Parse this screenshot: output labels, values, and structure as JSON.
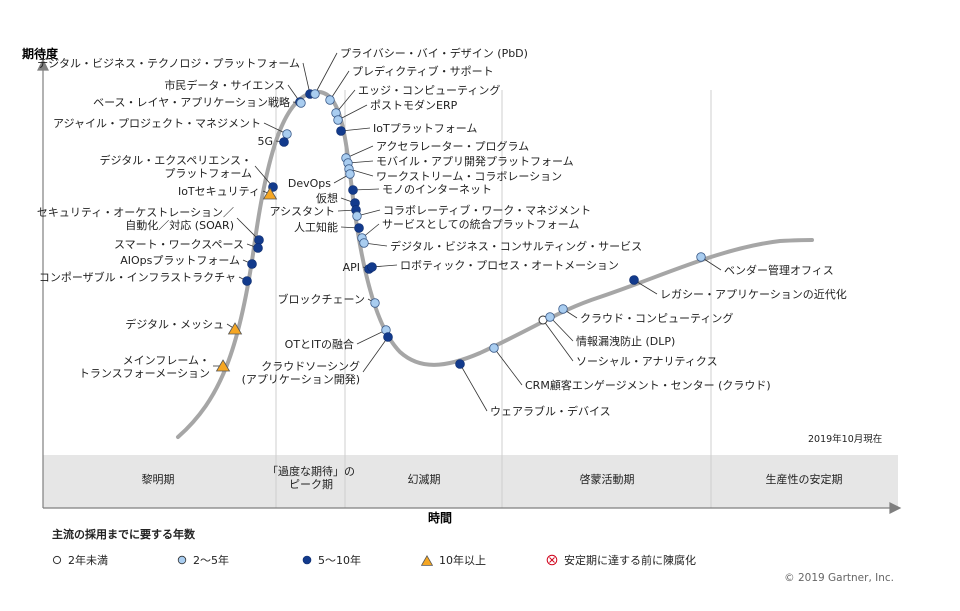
{
  "chart_data": {
    "type": "scatter",
    "ylabel": "期待度",
    "xlabel": "時間",
    "date_note": "2019年10月現在",
    "phases": [
      "黎明期",
      "「過度な期待」の\nピーク期",
      "幻滅期",
      "啓蒙活動期",
      "生産性の安定期"
    ],
    "legend_title": "主流の採用までに要する年数",
    "legend": [
      {
        "key": "lt2",
        "label": "2年未満"
      },
      {
        "key": "2to5",
        "label": "2～5年"
      },
      {
        "key": "5to10",
        "label": "5～10年"
      },
      {
        "key": "gt10",
        "label": "10年以上"
      },
      {
        "key": "obsolete",
        "label": "安定期に達する前に陳腐化"
      }
    ],
    "points": [
      {
        "label": "デジタル・ビジネス・テクノロジ・プラットフォーム",
        "cat": "5to10"
      },
      {
        "label": "市民データ・サイエンス",
        "cat": "5to10"
      },
      {
        "label": "ベース・レイヤ・アプリケーション戦略",
        "cat": "2to5"
      },
      {
        "label": "アジャイル・プロジェクト・マネジメント",
        "cat": "2to5"
      },
      {
        "label": "5G",
        "cat": "5to10"
      },
      {
        "label": "デジタル・エクスペリエンス・\nプラットフォーム",
        "cat": "5to10"
      },
      {
        "label": "IoTセキュリティ",
        "cat": "gt10"
      },
      {
        "label": "セキュリティ・オーケストレーション／\n自動化／対応 (SOAR)",
        "cat": "5to10"
      },
      {
        "label": "スマート・ワークスペース",
        "cat": "5to10"
      },
      {
        "label": "AIOpsプラットフォーム",
        "cat": "5to10"
      },
      {
        "label": "コンポーザブル・インフラストラクチャ",
        "cat": "5to10"
      },
      {
        "label": "デジタル・メッシュ",
        "cat": "gt10"
      },
      {
        "label": "メインフレーム・\nトランスフォーメーション",
        "cat": "gt10"
      },
      {
        "label": "プライバシー・バイ・デザイン (PbD)",
        "cat": "2to5"
      },
      {
        "label": "プレディクティブ・サポート",
        "cat": "2to5"
      },
      {
        "label": "エッジ・コンピューティング",
        "cat": "2to5"
      },
      {
        "label": "ポストモダンERP",
        "cat": "2to5"
      },
      {
        "label": "IoTプラットフォーム",
        "cat": "5to10"
      },
      {
        "label": "アクセラレーター・プログラム",
        "cat": "2to5"
      },
      {
        "label": "モバイル・アプリ開発プラットフォーム",
        "cat": "2to5"
      },
      {
        "label": "ワークストリーム・コラボレーション",
        "cat": "2to5"
      },
      {
        "label": "DevOps",
        "cat": "2to5"
      },
      {
        "label": "モノのインターネット",
        "cat": "5to10"
      },
      {
        "label": "仮想",
        "cat": "5to10"
      },
      {
        "label": "アシスタント",
        "cat": "5to10"
      },
      {
        "label": "コラボレーティブ・ワーク・マネジメント",
        "cat": "2to5"
      },
      {
        "label": "人工知能",
        "cat": "5to10"
      },
      {
        "label": "サービスとしての統合プラットフォーム",
        "cat": "2to5"
      },
      {
        "label": "デジタル・ビジネス・コンサルティング・サービス",
        "cat": "2to5"
      },
      {
        "label": "API",
        "cat": "5to10"
      },
      {
        "label": "ロボティック・プロセス・オートメーション",
        "cat": "5to10"
      },
      {
        "label": "ブロックチェーン",
        "cat": "2to5"
      },
      {
        "label": "OTとITの融合",
        "cat": "2to5"
      },
      {
        "label": "クラウドソーシング\n(アプリケーション開発)",
        "cat": "5to10"
      },
      {
        "label": "ウェアラブル・デバイス",
        "cat": "5to10"
      },
      {
        "label": "CRM顧客エンゲージメント・センター (クラウド)",
        "cat": "2to5"
      },
      {
        "label": "ソーシャル・アナリティクス",
        "cat": "lt2"
      },
      {
        "label": "情報漏洩防止 (DLP)",
        "cat": "2to5"
      },
      {
        "label": "クラウド・コンピューティング",
        "cat": "2to5"
      },
      {
        "label": "レガシー・アプリケーションの近代化",
        "cat": "5to10"
      },
      {
        "label": "ベンダー管理オフィス",
        "cat": "2to5"
      }
    ],
    "colors": {
      "lt2": "#ffffff",
      "2to5": "#a9cdf0",
      "5to10": "#123a8c",
      "gt10": "#f5a623",
      "curve": "#a6a6a6"
    }
  },
  "copyright": "© 2019 Gartner, Inc."
}
